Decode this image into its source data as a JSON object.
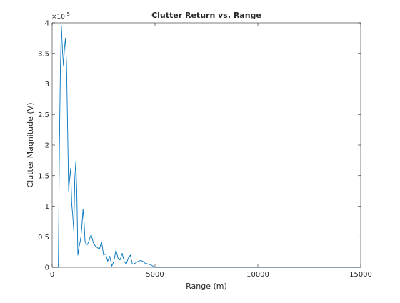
{
  "chart_data": {
    "type": "line",
    "title": "Clutter Return vs. Range",
    "xlabel": "Range (m)",
    "ylabel": "Clutter Magnitude (V)",
    "y_exponent_label": "×10",
    "y_exponent": "-5",
    "xlim": [
      0,
      15000
    ],
    "ylim": [
      0,
      4e-05
    ],
    "x_ticks": [
      0,
      5000,
      10000,
      15000
    ],
    "x_tick_labels": [
      "0",
      "5000",
      "10000",
      "15000"
    ],
    "y_ticks": [
      0,
      5e-06,
      1e-05,
      1.5e-05,
      2e-05,
      2.5e-05,
      3e-05,
      3.5e-05,
      4e-05
    ],
    "y_tick_labels": [
      "0",
      "0.5",
      "1",
      "1.5",
      "2",
      "2.5",
      "3",
      "3.5",
      "4"
    ],
    "grid": false,
    "legend": "none",
    "series": [
      {
        "color": "#0072bd",
        "x": [
          0,
          300,
          350,
          400,
          450,
          500,
          550,
          600,
          650,
          700,
          750,
          800,
          850,
          900,
          950,
          1000,
          1050,
          1100,
          1150,
          1200,
          1250,
          1300,
          1350,
          1400,
          1450,
          1500,
          1550,
          1600,
          1650,
          1700,
          1750,
          1800,
          1850,
          1900,
          1950,
          2000,
          2100,
          2200,
          2300,
          2400,
          2500,
          2600,
          2700,
          2800,
          2900,
          3000,
          3100,
          3150,
          3200,
          3300,
          3400,
          3500,
          3600,
          3700,
          3800,
          3900,
          4000,
          4100,
          4200,
          4300,
          4400,
          4500,
          4600,
          4700,
          4800,
          4900,
          4950,
          5000,
          6000,
          8000,
          10000,
          12000,
          15000
        ],
        "y": [
          0,
          0,
          1.9e-05,
          3.25e-05,
          3.95e-05,
          3.55e-05,
          3.3e-05,
          3.6e-05,
          3.75e-05,
          3.3e-05,
          2.3e-05,
          1.25e-05,
          1.45e-05,
          1.62e-05,
          1.05e-05,
          8.5e-06,
          6e-06,
          1.45e-05,
          1.73e-05,
          1.2e-05,
          2e-06,
          3.2e-06,
          4e-06,
          5e-06,
          7e-06,
          9.5e-06,
          7.5e-06,
          4.2e-06,
          3.8e-06,
          3.7e-06,
          4e-06,
          4.4e-06,
          5e-06,
          5.3e-06,
          4.7e-06,
          4e-06,
          3.5e-06,
          3.2e-06,
          3e-06,
          4.2e-06,
          2e-06,
          2.2e-06,
          1e-06,
          1.8e-06,
          2e-07,
          1e-06,
          2.8e-06,
          2.2e-06,
          1.5e-06,
          1.2e-06,
          2.3e-06,
          1e-06,
          5e-07,
          1.5e-06,
          2e-06,
          5e-07,
          6e-07,
          8e-07,
          1e-06,
          1.1e-06,
          1e-06,
          7e-07,
          6e-07,
          5e-07,
          4e-07,
          2e-07,
          1e-07,
          0,
          0,
          0,
          0,
          0,
          0
        ]
      }
    ]
  }
}
